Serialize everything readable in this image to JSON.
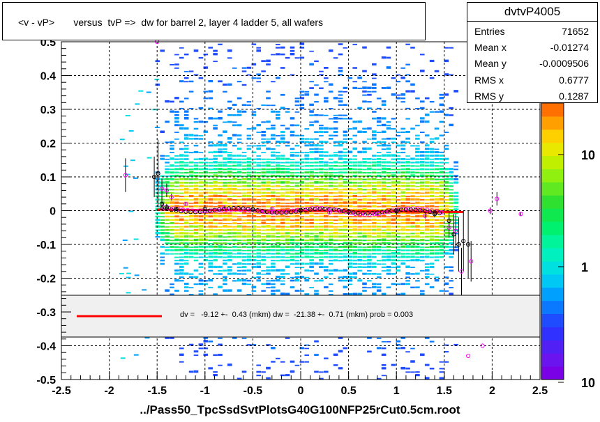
{
  "title": "<v - vP>       versus  tvP =>  dw for barrel 2, layer 4 ladder 5, all wafers",
  "stats": {
    "name": "dvtvP4005",
    "rows": [
      {
        "key": "Entries",
        "value": "71652"
      },
      {
        "key": "Mean x",
        "value": "-0.01274"
      },
      {
        "key": "Mean y",
        "value": "-0.0009506"
      },
      {
        "key": "RMS x",
        "value": "0.6777"
      },
      {
        "key": "RMS y",
        "value": "0.1287"
      }
    ]
  },
  "fit_legend": "dv =   -9.12 +-  0.43 (mkm) dw =  -21.38 +-  0.71 (mkm) prob = 0.003",
  "x_title": "../Pass50_TpcSsdSvtPlotsG40G100NFP25rCut0.5cm.root",
  "colors": {
    "fit_line": "#ff0000",
    "black_markers": "#000000",
    "magenta_markers": "#ff00ff",
    "legend_bg": "#f0f0f0"
  },
  "chart_data": {
    "type": "heatmap",
    "title": "<v - vP>       versus  tvP =>  dw for barrel 2, layer 4 ladder 5, all wafers",
    "xlim": [
      -2.5,
      2.5
    ],
    "ylim": [
      -0.5,
      0.5
    ],
    "x_ticks": [
      "-2.5",
      "-2",
      "-1.5",
      "-1",
      "-0.5",
      "0",
      "0.5",
      "1",
      "1.5",
      "2",
      "2.5"
    ],
    "y_ticks": [
      "-0.5",
      "-0.4",
      "-0.3",
      "-0.2",
      "-0.1",
      "0",
      "0.1",
      "0.2",
      "0.3",
      "0.4",
      "0.5"
    ],
    "z_scale": "log",
    "z_ticks": [
      "1",
      "10",
      "10"
    ],
    "grid": true,
    "fit_line": {
      "x": [
        -1.5,
        1.7
      ],
      "y": [
        0.003,
        -0.004
      ],
      "color": "#ff0000"
    },
    "profile_black": [
      {
        "x": -1.53,
        "y": 0.1,
        "err": 0.06
      },
      {
        "x": -1.49,
        "y": 0.11,
        "err": 0.1
      },
      {
        "x": -1.45,
        "y": 0.02,
        "err": 0.02
      },
      {
        "x": -1.4,
        "y": 0.01,
        "err": 0.01
      },
      {
        "x": -1.3,
        "y": 0.005,
        "err": 0.005
      },
      {
        "x": -1.0,
        "y": 0.005,
        "err": 0.004
      },
      {
        "x": -0.5,
        "y": 0.004,
        "err": 0.004
      },
      {
        "x": 0.0,
        "y": 0.002,
        "err": 0.004
      },
      {
        "x": 0.5,
        "y": -0.002,
        "err": 0.004
      },
      {
        "x": 1.0,
        "y": -0.002,
        "err": 0.004
      },
      {
        "x": 1.4,
        "y": -0.01,
        "err": 0.01
      },
      {
        "x": 1.55,
        "y": -0.03,
        "err": 0.03
      },
      {
        "x": 1.6,
        "y": -0.07,
        "err": 0.06
      },
      {
        "x": 1.65,
        "y": -0.1,
        "err": 0.08
      },
      {
        "x": 1.7,
        "y": -0.09,
        "err": 0.09
      },
      {
        "x": 1.75,
        "y": -0.1,
        "err": 0.1
      }
    ],
    "profile_magenta": [
      {
        "x": -1.83,
        "y": 0.105,
        "err": 0.05
      },
      {
        "x": -1.5,
        "y": 0.5,
        "err": 0
      },
      {
        "x": -1.45,
        "y": 0.065,
        "err": 0.03
      },
      {
        "x": -1.4,
        "y": 0.06,
        "err": 0.02
      },
      {
        "x": -1.35,
        "y": 0.04,
        "err": 0.01
      },
      {
        "x": -1.2,
        "y": 0.02,
        "err": 0.005
      },
      {
        "x": -0.8,
        "y": 0.01,
        "err": 0.004
      },
      {
        "x": -0.3,
        "y": 0.005,
        "err": 0.004
      },
      {
        "x": 0.3,
        "y": -0.005,
        "err": 0.004
      },
      {
        "x": 0.8,
        "y": -0.01,
        "err": 0.004
      },
      {
        "x": 1.3,
        "y": -0.015,
        "err": 0.008
      },
      {
        "x": 1.55,
        "y": -0.05,
        "err": 0.03
      },
      {
        "x": 1.62,
        "y": -0.06,
        "err": 0.05
      },
      {
        "x": 1.68,
        "y": -0.18,
        "err": 0.07
      },
      {
        "x": 1.78,
        "y": -0.15,
        "err": 0.06
      },
      {
        "x": 1.9,
        "y": -0.4,
        "err": 0
      },
      {
        "x": 2.05,
        "y": 0.035,
        "err": 0.02
      },
      {
        "x": 1.98,
        "y": 0.0,
        "err": 0.01
      },
      {
        "x": 2.3,
        "y": -0.01,
        "err": 0.005
      },
      {
        "x": 1.75,
        "y": -0.43,
        "err": 0
      }
    ]
  }
}
